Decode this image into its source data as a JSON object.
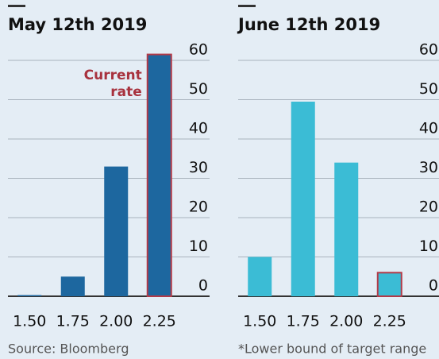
{
  "chart_data": [
    {
      "type": "bar",
      "title": "May 12th 2019",
      "categories": [
        "1.50",
        "1.75",
        "2.00",
        "2.25"
      ],
      "values": [
        0.3,
        5,
        33,
        61.5
      ],
      "color": "#1d679f",
      "edgecolors": [
        null,
        null,
        null,
        "#b23a48"
      ],
      "annotation": [
        "Current",
        "rate"
      ],
      "annotation_color": "#a8323e",
      "ylim": [
        0,
        60
      ],
      "yticks": [
        0,
        10,
        20,
        30,
        40,
        50,
        60
      ],
      "grid": true,
      "source": "Source: Bloomberg"
    },
    {
      "type": "bar",
      "title": "June 12th 2019",
      "categories": [
        "1.50",
        "1.75",
        "2.00",
        "2.25"
      ],
      "values": [
        10,
        49.5,
        34,
        6
      ],
      "color": "#3bbcd5",
      "edgecolors": [
        null,
        null,
        null,
        "#b23a48"
      ],
      "ylim": [
        0,
        60
      ],
      "yticks": [
        0,
        10,
        20,
        30,
        40,
        50,
        60
      ],
      "grid": true,
      "source": "*Lower bound of target range"
    }
  ]
}
